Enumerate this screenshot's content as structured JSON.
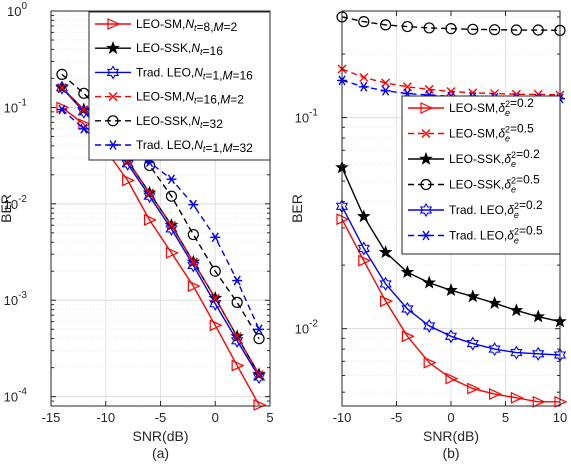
{
  "chart_data": [
    {
      "type": "line",
      "panel_label": "(a)",
      "xlabel": "SNR(dB)",
      "ylabel": "BER",
      "xlim": [
        -15,
        5
      ],
      "ylim": [
        8e-05,
        1
      ],
      "yscale": "log",
      "grid": true,
      "legend_position": "top-right",
      "x_ticks": [
        "-15",
        "-10",
        "-5",
        "0",
        "5"
      ],
      "y_ticks": [
        {
          "base": "10",
          "exp": "-4"
        },
        {
          "base": "10",
          "exp": "-3"
        },
        {
          "base": "10",
          "exp": "-2"
        },
        {
          "base": "10",
          "exp": "-1"
        },
        {
          "base": "10",
          "exp": "0"
        }
      ],
      "series": [
        {
          "name": "LEO-SM,Nt=8,M=2",
          "legend_parts": [
            {
              "t": "LEO-SM,",
              "i": false
            },
            {
              "t": "N",
              "i": true
            },
            {
              "t": "t",
              "i": true,
              "sub": true
            },
            {
              "t": "=8,",
              "i": false
            },
            {
              "t": "M",
              "i": true
            },
            {
              "t": "=2",
              "i": false
            }
          ],
          "color": "#ff0000",
          "dash": "solid",
          "marker": "triangle-right",
          "x": [
            -14,
            -12,
            -10,
            -8,
            -6,
            -4,
            -2,
            0,
            2,
            4
          ],
          "y": [
            0.1,
            0.067,
            0.036,
            0.0175,
            0.0068,
            0.0031,
            0.0014,
            0.00055,
            0.00021,
            8.2e-05
          ]
        },
        {
          "name": "LEO-SSK,Nt=16",
          "legend_parts": [
            {
              "t": "LEO-SSK,",
              "i": false
            },
            {
              "t": "N",
              "i": true
            },
            {
              "t": "t",
              "i": true,
              "sub": true
            },
            {
              "t": "=16",
              "i": false
            }
          ],
          "color": "#000000",
          "dash": "solid",
          "marker": "star",
          "x": [
            -14,
            -12,
            -10,
            -8,
            -6,
            -4,
            -2,
            0,
            2,
            4
          ],
          "y": [
            0.16,
            0.095,
            0.056,
            0.028,
            0.013,
            0.006,
            0.0025,
            0.00105,
            0.00042,
            0.00017
          ]
        },
        {
          "name": "Trad. LEO,Nt=1,M=16",
          "legend_parts": [
            {
              "t": "Trad. LEO,",
              "i": false
            },
            {
              "t": "N",
              "i": true
            },
            {
              "t": "t",
              "i": true,
              "sub": true
            },
            {
              "t": "=1,",
              "i": false
            },
            {
              "t": "M",
              "i": true
            },
            {
              "t": "=16",
              "i": false
            }
          ],
          "color": "#0000ff",
          "dash": "solid",
          "marker": "hexagram",
          "x": [
            -14,
            -12,
            -10,
            -8,
            -6,
            -4,
            -2,
            0,
            2,
            4
          ],
          "y": [
            0.16,
            0.09,
            0.052,
            0.026,
            0.012,
            0.0055,
            0.0023,
            0.00092,
            0.00038,
            0.00016
          ]
        },
        {
          "name": "LEO-SM,Nt=16,M=2",
          "legend_parts": [
            {
              "t": "LEO-SM,",
              "i": false
            },
            {
              "t": "N",
              "i": true
            },
            {
              "t": "t",
              "i": true,
              "sub": true
            },
            {
              "t": "=16,",
              "i": false
            },
            {
              "t": "M",
              "i": true
            },
            {
              "t": "=2",
              "i": false
            }
          ],
          "color": "#ff0000",
          "dash": "dashed",
          "marker": "x",
          "x": [
            -14,
            -12,
            -10,
            -8,
            -6,
            -4,
            -2,
            0,
            2,
            4
          ],
          "y": [
            0.16,
            0.095,
            0.056,
            0.028,
            0.013,
            0.006,
            0.0025,
            0.00105,
            0.00042,
            0.00017
          ]
        },
        {
          "name": "LEO-SSK,Nt=32",
          "legend_parts": [
            {
              "t": "LEO-SSK,",
              "i": false
            },
            {
              "t": "N",
              "i": true
            },
            {
              "t": "t",
              "i": true,
              "sub": true
            },
            {
              "t": "=32",
              "i": false
            }
          ],
          "color": "#000000",
          "dash": "dashed",
          "marker": "circle",
          "x": [
            -14,
            -12,
            -10,
            -8,
            -6,
            -4,
            -2,
            0,
            2,
            4
          ],
          "y": [
            0.22,
            0.14,
            0.08,
            0.047,
            0.025,
            0.012,
            0.0048,
            0.002,
            0.00095,
            0.0004
          ]
        },
        {
          "name": "Trad. LEO,Nt=1,M=32",
          "legend_parts": [
            {
              "t": "Trad. LEO,",
              "i": false
            },
            {
              "t": "N",
              "i": true
            },
            {
              "t": "t",
              "i": true,
              "sub": true
            },
            {
              "t": "=1,",
              "i": false
            },
            {
              "t": "M",
              "i": true
            },
            {
              "t": "=32",
              "i": false
            }
          ],
          "color": "#0000ff",
          "dash": "dashed",
          "marker": "asterisk",
          "x": [
            -14,
            -12,
            -10,
            -8,
            -6,
            -4,
            -2,
            0,
            2,
            4
          ],
          "y": [
            0.095,
            0.06,
            0.038,
            0.034,
            0.027,
            0.018,
            0.0098,
            0.0045,
            0.0016,
            0.0005
          ]
        }
      ]
    },
    {
      "type": "line",
      "panel_label": "(b)",
      "xlabel": "SNR(dB)",
      "ylabel": "BER",
      "xlim": [
        -10,
        10
      ],
      "ylim": [
        0.0043,
        0.32
      ],
      "yscale": "log",
      "grid": true,
      "legend_position": "right",
      "x_ticks": [
        "-10",
        "-5",
        "0",
        "5",
        "10"
      ],
      "y_ticks": [
        {
          "base": "10",
          "exp": "-2"
        },
        {
          "base": "10",
          "exp": "-1"
        }
      ],
      "series": [
        {
          "name": "LEO-SM,δe2=0.2",
          "legend_parts": [
            {
              "t": "LEO-SM,",
              "i": false
            },
            {
              "t": "δ",
              "i": true
            },
            {
              "t": "e",
              "i": true,
              "supsub": "2"
            },
            {
              "t": "=0.2",
              "i": false
            }
          ],
          "color": "#ff0000",
          "dash": "solid",
          "marker": "triangle-right",
          "x": [
            -10,
            -8,
            -6,
            -4,
            -2,
            0,
            2,
            4,
            6,
            8,
            10
          ],
          "y": [
            0.033,
            0.021,
            0.0135,
            0.0092,
            0.0069,
            0.0058,
            0.0052,
            0.0049,
            0.0047,
            0.0045,
            0.0045
          ]
        },
        {
          "name": "LEO-SM,δe2=0.5",
          "legend_parts": [
            {
              "t": "LEO-SM,",
              "i": false
            },
            {
              "t": "δ",
              "i": true
            },
            {
              "t": "e",
              "i": true,
              "supsub": "2"
            },
            {
              "t": "=0.5",
              "i": false
            }
          ],
          "color": "#ff0000",
          "dash": "dashed",
          "marker": "x",
          "x": [
            -10,
            -8,
            -6,
            -4,
            -2,
            0,
            2,
            4,
            6,
            8,
            10
          ],
          "y": [
            0.17,
            0.155,
            0.146,
            0.14,
            0.136,
            0.133,
            0.131,
            0.13,
            0.129,
            0.129,
            0.128
          ]
        },
        {
          "name": "LEO-SSK,δe2=0.2",
          "legend_parts": [
            {
              "t": "LEO-SSK,",
              "i": false
            },
            {
              "t": "δ",
              "i": true
            },
            {
              "t": "e",
              "i": true,
              "supsub": "2"
            },
            {
              "t": "=0.2",
              "i": false
            }
          ],
          "color": "#000000",
          "dash": "solid",
          "marker": "star",
          "x": [
            -10,
            -8,
            -6,
            -4,
            -2,
            0,
            2,
            4,
            6,
            8,
            10
          ],
          "y": [
            0.058,
            0.034,
            0.023,
            0.0185,
            0.0165,
            0.0152,
            0.0142,
            0.0132,
            0.0122,
            0.0114,
            0.0108
          ]
        },
        {
          "name": "LEO-SSK,δe2=0.5",
          "legend_parts": [
            {
              "t": "LEO-SSK,",
              "i": false
            },
            {
              "t": "δ",
              "i": true
            },
            {
              "t": "e",
              "i": true,
              "supsub": "2"
            },
            {
              "t": "=0.5",
              "i": false
            }
          ],
          "color": "#000000",
          "dash": "dashed",
          "marker": "circle",
          "x": [
            -10,
            -8,
            -6,
            -4,
            -2,
            0,
            2,
            4,
            6,
            8,
            10
          ],
          "y": [
            0.3,
            0.285,
            0.275,
            0.27,
            0.266,
            0.264,
            0.262,
            0.261,
            0.26,
            0.26,
            0.259
          ]
        },
        {
          "name": "Trad. LEO,δe2=0.2",
          "legend_parts": [
            {
              "t": "Trad. LEO,",
              "i": false
            },
            {
              "t": "δ",
              "i": true
            },
            {
              "t": "e",
              "i": true,
              "supsub": "2"
            },
            {
              "t": "=0.2",
              "i": false
            }
          ],
          "color": "#0000ff",
          "dash": "solid",
          "marker": "hexagram",
          "x": [
            -10,
            -8,
            -6,
            -4,
            -2,
            0,
            2,
            4,
            6,
            8,
            10
          ],
          "y": [
            0.038,
            0.024,
            0.0163,
            0.0124,
            0.0103,
            0.0092,
            0.0085,
            0.008,
            0.0077,
            0.0076,
            0.0075
          ]
        },
        {
          "name": "Trad. LEO,δe2=0.5",
          "legend_parts": [
            {
              "t": "Trad. LEO,",
              "i": false
            },
            {
              "t": "δ",
              "i": true
            },
            {
              "t": "e",
              "i": true,
              "supsub": "2"
            },
            {
              "t": "=0.5",
              "i": false
            }
          ],
          "color": "#0000ff",
          "dash": "dashed",
          "marker": "asterisk",
          "x": [
            -10,
            -8,
            -6,
            -4,
            -2,
            0,
            2,
            4,
            6,
            8,
            10
          ],
          "y": [
            0.15,
            0.14,
            0.134,
            0.13,
            0.128,
            0.126,
            0.125,
            0.124,
            0.124,
            0.123,
            0.123
          ]
        }
      ]
    }
  ]
}
